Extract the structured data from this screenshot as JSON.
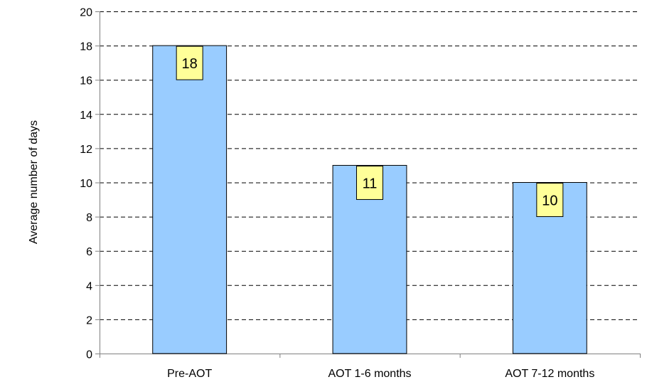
{
  "chart_data": {
    "type": "bar",
    "title": "",
    "xlabel": "",
    "ylabel": "Average number of days",
    "categories": [
      "Pre-AOT",
      "AOT 1-6 months",
      "AOT 7-12 months"
    ],
    "values": [
      18,
      11,
      10
    ],
    "ylim": [
      0,
      20
    ],
    "y_ticks": [
      0,
      2,
      4,
      6,
      8,
      10,
      12,
      14,
      16,
      18,
      20
    ],
    "data_labels": [
      "18",
      "11",
      "10"
    ],
    "grid": true,
    "grid_style": "dashed",
    "legend": "none",
    "colors": {
      "bar_fill": "#99ccff",
      "bar_stroke": "#000000",
      "label_fill": "#ffff99",
      "grid": "#000000",
      "axis": "#808080"
    }
  }
}
